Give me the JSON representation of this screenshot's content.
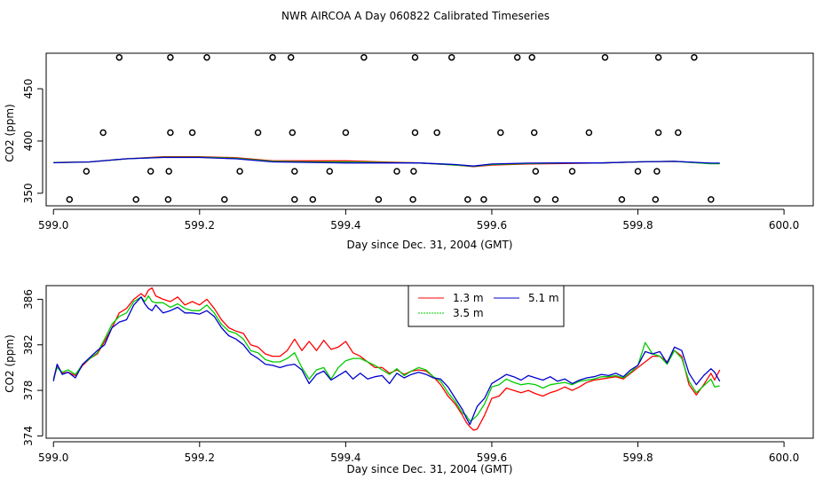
{
  "figure_title": "NWR AIRCOA A  Day 060822  Calibrated Timeseries",
  "chart_data": [
    {
      "type": "line",
      "panel": "top",
      "title": "",
      "xlabel": "Day since Dec. 31, 2004 (GMT)",
      "ylabel": "CO2 (ppm)",
      "xlim": [
        598.99,
        600.04
      ],
      "ylim": [
        338,
        484
      ],
      "x_ticks": [
        599.0,
        599.2,
        599.4,
        599.6,
        599.8,
        600.0
      ],
      "x_tick_labels": [
        "599.0",
        "599.2",
        "599.4",
        "599.6",
        "599.8",
        "600.0"
      ],
      "y_ticks": [
        350,
        400,
        450
      ],
      "y_tick_labels": [
        "350",
        "400",
        "450"
      ],
      "series": [
        {
          "name": "1.3 m",
          "color": "#ff0000",
          "x": [
            599.0,
            599.05,
            599.1,
            599.15,
            599.2,
            599.25,
            599.3,
            599.35,
            599.4,
            599.45,
            599.5,
            599.55,
            599.575,
            599.6,
            599.65,
            599.7,
            599.75,
            599.8,
            599.85,
            599.9,
            599.912
          ],
          "y": [
            379.5,
            380,
            383,
            385,
            385,
            384,
            381,
            381,
            381,
            380,
            379,
            377,
            375.5,
            377,
            378,
            378.5,
            379,
            380,
            380.5,
            378.5,
            378.5
          ]
        },
        {
          "name": "3.5 m",
          "color": "#00cc00",
          "x": [
            599.0,
            599.05,
            599.1,
            599.15,
            599.2,
            599.25,
            599.3,
            599.35,
            599.4,
            599.45,
            599.5,
            599.55,
            599.575,
            599.6,
            599.65,
            599.7,
            599.75,
            599.8,
            599.85,
            599.9,
            599.912
          ],
          "y": [
            379.3,
            380,
            383,
            384.5,
            384.5,
            383.5,
            380.5,
            380,
            380,
            379.5,
            379,
            377,
            375.8,
            377.5,
            378.5,
            378.8,
            379,
            380,
            380.5,
            378.2,
            378.2
          ]
        },
        {
          "name": "5.1 m",
          "color": "#0000cc",
          "x": [
            599.0,
            599.05,
            599.1,
            599.15,
            599.2,
            599.25,
            599.3,
            599.35,
            599.4,
            599.45,
            599.5,
            599.55,
            599.575,
            599.6,
            599.65,
            599.7,
            599.75,
            599.8,
            599.85,
            599.9,
            599.912
          ],
          "y": [
            379.2,
            380,
            383,
            384.3,
            384.3,
            383,
            380,
            379.5,
            379,
            379,
            379,
            377.5,
            376,
            378,
            378.8,
            379,
            379,
            380,
            380.5,
            378.8,
            378.8
          ]
        }
      ],
      "scatter_markers": {
        "marker": "open-circle",
        "points": [
          [
            599.09,
            480
          ],
          [
            599.16,
            480
          ],
          [
            599.21,
            480
          ],
          [
            599.3,
            480
          ],
          [
            599.325,
            480
          ],
          [
            599.425,
            480
          ],
          [
            599.495,
            480
          ],
          [
            599.545,
            480
          ],
          [
            599.635,
            480
          ],
          [
            599.655,
            480
          ],
          [
            599.755,
            480
          ],
          [
            599.828,
            480
          ],
          [
            599.877,
            480
          ],
          [
            599.068,
            408
          ],
          [
            599.16,
            408
          ],
          [
            599.19,
            408
          ],
          [
            599.28,
            408
          ],
          [
            599.327,
            408
          ],
          [
            599.4,
            408
          ],
          [
            599.495,
            408
          ],
          [
            599.525,
            408
          ],
          [
            599.612,
            408
          ],
          [
            599.658,
            408
          ],
          [
            599.733,
            408
          ],
          [
            599.828,
            408
          ],
          [
            599.855,
            408
          ],
          [
            599.045,
            371
          ],
          [
            599.133,
            371
          ],
          [
            599.158,
            371
          ],
          [
            599.255,
            371
          ],
          [
            599.33,
            371
          ],
          [
            599.378,
            371
          ],
          [
            599.47,
            371
          ],
          [
            599.493,
            371
          ],
          [
            599.66,
            371
          ],
          [
            599.71,
            371
          ],
          [
            599.8,
            371
          ],
          [
            599.826,
            371
          ],
          [
            599.022,
            344
          ],
          [
            599.113,
            344
          ],
          [
            599.157,
            344
          ],
          [
            599.234,
            344
          ],
          [
            599.33,
            344
          ],
          [
            599.355,
            344
          ],
          [
            599.445,
            344
          ],
          [
            599.492,
            344
          ],
          [
            599.567,
            344
          ],
          [
            599.589,
            344
          ],
          [
            599.662,
            344
          ],
          [
            599.687,
            344
          ],
          [
            599.778,
            344
          ],
          [
            599.824,
            344
          ],
          [
            599.9,
            344
          ]
        ]
      }
    },
    {
      "type": "line",
      "panel": "bottom",
      "title": "",
      "xlabel": "Day since Dec. 31, 2004 (GMT)",
      "ylabel": "CO2 (ppm)",
      "xlim": [
        598.99,
        600.04
      ],
      "ylim": [
        373.8,
        387.2
      ],
      "x_ticks": [
        599.0,
        599.2,
        599.4,
        599.6,
        599.8,
        600.0
      ],
      "x_tick_labels": [
        "599.0",
        "599.2",
        "599.4",
        "599.6",
        "599.8",
        "600.0"
      ],
      "y_ticks": [
        374,
        378,
        382,
        386
      ],
      "y_tick_labels": [
        "374",
        "378",
        "382",
        "386"
      ],
      "legend": {
        "placement": "top-center",
        "entries": [
          {
            "label": "1.3 m",
            "color": "#ff0000"
          },
          {
            "label": "5.1 m",
            "color": "#0000cc"
          },
          {
            "label": "3.5 m",
            "color": "#00cc00"
          }
        ]
      },
      "series": [
        {
          "name": "1.3 m",
          "color": "#ff0000",
          "x": [
            599.0,
            599.005,
            599.012,
            599.02,
            599.03,
            599.04,
            599.05,
            599.06,
            599.07,
            599.08,
            599.09,
            599.1,
            599.11,
            599.12,
            599.125,
            599.13,
            599.135,
            599.14,
            599.15,
            599.16,
            599.17,
            599.18,
            599.19,
            599.2,
            599.21,
            599.22,
            599.23,
            599.24,
            599.25,
            599.26,
            599.27,
            599.28,
            599.29,
            599.3,
            599.31,
            599.32,
            599.33,
            599.34,
            599.35,
            599.36,
            599.37,
            599.38,
            599.39,
            599.4,
            599.41,
            599.42,
            599.43,
            599.44,
            599.45,
            599.46,
            599.47,
            599.48,
            599.49,
            599.5,
            599.51,
            599.52,
            599.53,
            599.54,
            599.55,
            599.56,
            599.565,
            599.57,
            599.575,
            599.58,
            599.59,
            599.6,
            599.61,
            599.62,
            599.63,
            599.64,
            599.65,
            599.66,
            599.67,
            599.68,
            599.69,
            599.7,
            599.71,
            599.72,
            599.73,
            599.74,
            599.75,
            599.76,
            599.77,
            599.78,
            599.79,
            599.8,
            599.81,
            599.82,
            599.83,
            599.84,
            599.85,
            599.86,
            599.87,
            599.88,
            599.89,
            599.9,
            599.905,
            599.912
          ],
          "y": [
            379.0,
            380.2,
            379.5,
            379.6,
            379.3,
            380.2,
            380.8,
            381.2,
            382.3,
            383.5,
            384.8,
            385.2,
            386.0,
            386.5,
            386.2,
            386.8,
            387.0,
            386.3,
            386.0,
            385.8,
            386.2,
            385.5,
            385.8,
            385.5,
            386.0,
            385.2,
            384.2,
            383.5,
            383.2,
            383.0,
            382.0,
            381.8,
            381.2,
            381.0,
            381.0,
            381.5,
            382.5,
            381.5,
            382.3,
            381.5,
            382.4,
            381.6,
            381.8,
            382.3,
            381.3,
            381.0,
            380.5,
            380.0,
            380.0,
            379.5,
            379.8,
            379.4,
            379.7,
            379.8,
            379.7,
            379.2,
            378.5,
            377.5,
            376.8,
            375.8,
            375.2,
            374.8,
            374.5,
            374.6,
            375.8,
            377.3,
            377.5,
            378.2,
            378.0,
            377.8,
            378.0,
            377.7,
            377.5,
            377.8,
            378.0,
            378.3,
            378.0,
            378.3,
            378.7,
            378.9,
            379.0,
            379.1,
            379.2,
            379.0,
            379.5,
            380.0,
            380.5,
            381.0,
            381.0,
            380.5,
            381.5,
            381.0,
            378.5,
            377.6,
            378.5,
            379.5,
            378.9,
            379.8
          ]
        },
        {
          "name": "3.5 m",
          "color": "#00cc00",
          "x": [
            599.0,
            599.005,
            599.012,
            599.02,
            599.03,
            599.04,
            599.05,
            599.06,
            599.07,
            599.08,
            599.09,
            599.1,
            599.11,
            599.12,
            599.125,
            599.13,
            599.135,
            599.14,
            599.15,
            599.16,
            599.17,
            599.18,
            599.19,
            599.2,
            599.21,
            599.22,
            599.23,
            599.24,
            599.25,
            599.26,
            599.27,
            599.28,
            599.29,
            599.3,
            599.31,
            599.32,
            599.33,
            599.34,
            599.35,
            599.36,
            599.37,
            599.38,
            599.39,
            599.4,
            599.41,
            599.42,
            599.43,
            599.44,
            599.45,
            599.46,
            599.47,
            599.48,
            599.49,
            599.5,
            599.51,
            599.52,
            599.53,
            599.54,
            599.55,
            599.56,
            599.565,
            599.57,
            599.575,
            599.58,
            599.59,
            599.6,
            599.61,
            599.62,
            599.63,
            599.64,
            599.65,
            599.66,
            599.67,
            599.68,
            599.69,
            599.7,
            599.71,
            599.72,
            599.73,
            599.74,
            599.75,
            599.76,
            599.77,
            599.78,
            599.79,
            599.8,
            599.81,
            599.82,
            599.83,
            599.84,
            599.85,
            599.86,
            599.87,
            599.88,
            599.89,
            599.9,
            599.905,
            599.912
          ],
          "y": [
            379.0,
            380.0,
            379.6,
            379.8,
            379.4,
            380.3,
            380.8,
            381.3,
            382.5,
            383.8,
            384.5,
            384.8,
            385.8,
            386.2,
            385.8,
            386.3,
            385.8,
            385.7,
            385.7,
            385.3,
            385.6,
            385.2,
            385.0,
            385.0,
            385.5,
            384.8,
            383.8,
            383.2,
            383.0,
            382.5,
            381.5,
            381.3,
            380.7,
            380.5,
            380.5,
            380.8,
            381.3,
            380.0,
            379.0,
            379.8,
            380.0,
            379.0,
            380.0,
            380.6,
            380.8,
            380.8,
            380.5,
            380.2,
            379.8,
            379.4,
            379.9,
            379.3,
            379.7,
            380.0,
            379.8,
            379.2,
            378.8,
            377.8,
            377.0,
            376.0,
            375.8,
            375.3,
            375.5,
            375.8,
            376.8,
            378.3,
            378.5,
            379.0,
            378.7,
            378.5,
            378.6,
            378.5,
            378.2,
            378.5,
            378.6,
            378.7,
            378.5,
            378.8,
            378.9,
            379.0,
            379.2,
            379.2,
            379.3,
            379.1,
            379.6,
            380.2,
            382.2,
            381.2,
            381.0,
            380.3,
            381.5,
            380.8,
            378.8,
            377.8,
            378.4,
            379.0,
            378.3,
            378.4
          ]
        },
        {
          "name": "5.1 m",
          "color": "#0000cc",
          "x": [
            599.0,
            599.005,
            599.012,
            599.02,
            599.03,
            599.04,
            599.05,
            599.06,
            599.07,
            599.08,
            599.09,
            599.1,
            599.11,
            599.12,
            599.125,
            599.13,
            599.135,
            599.14,
            599.15,
            599.16,
            599.17,
            599.18,
            599.19,
            599.2,
            599.21,
            599.22,
            599.23,
            599.24,
            599.25,
            599.26,
            599.27,
            599.28,
            599.29,
            599.3,
            599.31,
            599.32,
            599.33,
            599.34,
            599.35,
            599.36,
            599.37,
            599.38,
            599.39,
            599.4,
            599.41,
            599.42,
            599.43,
            599.44,
            599.45,
            599.46,
            599.47,
            599.48,
            599.49,
            599.5,
            599.51,
            599.52,
            599.53,
            599.54,
            599.55,
            599.56,
            599.565,
            599.57,
            599.575,
            599.58,
            599.59,
            599.6,
            599.61,
            599.62,
            599.63,
            599.64,
            599.65,
            599.66,
            599.67,
            599.68,
            599.69,
            599.7,
            599.71,
            599.72,
            599.73,
            599.74,
            599.75,
            599.76,
            599.77,
            599.78,
            599.79,
            599.8,
            599.81,
            599.82,
            599.83,
            599.84,
            599.85,
            599.86,
            599.87,
            599.88,
            599.89,
            599.9,
            599.905,
            599.912
          ],
          "y": [
            378.8,
            380.3,
            379.4,
            379.6,
            379.1,
            380.3,
            380.9,
            381.5,
            382.0,
            383.5,
            384.0,
            384.2,
            385.5,
            386.2,
            385.6,
            385.2,
            385.0,
            385.5,
            384.8,
            385.0,
            385.3,
            384.8,
            384.8,
            384.7,
            385.0,
            384.5,
            383.5,
            382.8,
            382.5,
            382.0,
            381.2,
            380.8,
            380.3,
            380.2,
            380.0,
            380.2,
            380.3,
            379.8,
            378.6,
            379.4,
            379.7,
            378.9,
            379.3,
            379.7,
            379.0,
            379.5,
            379.0,
            379.2,
            379.3,
            378.6,
            379.5,
            379.1,
            379.4,
            379.6,
            379.4,
            379.1,
            379.0,
            378.3,
            377.3,
            376.3,
            375.6,
            375.0,
            375.8,
            376.6,
            377.3,
            378.6,
            379.0,
            379.4,
            379.2,
            378.9,
            379.3,
            379.1,
            378.9,
            379.2,
            378.8,
            379.0,
            378.6,
            378.9,
            379.1,
            379.2,
            379.4,
            379.3,
            379.5,
            379.2,
            379.8,
            380.2,
            381.4,
            381.2,
            381.4,
            380.4,
            381.8,
            381.5,
            379.5,
            378.5,
            379.3,
            379.9,
            379.6,
            378.8
          ]
        }
      ]
    }
  ]
}
